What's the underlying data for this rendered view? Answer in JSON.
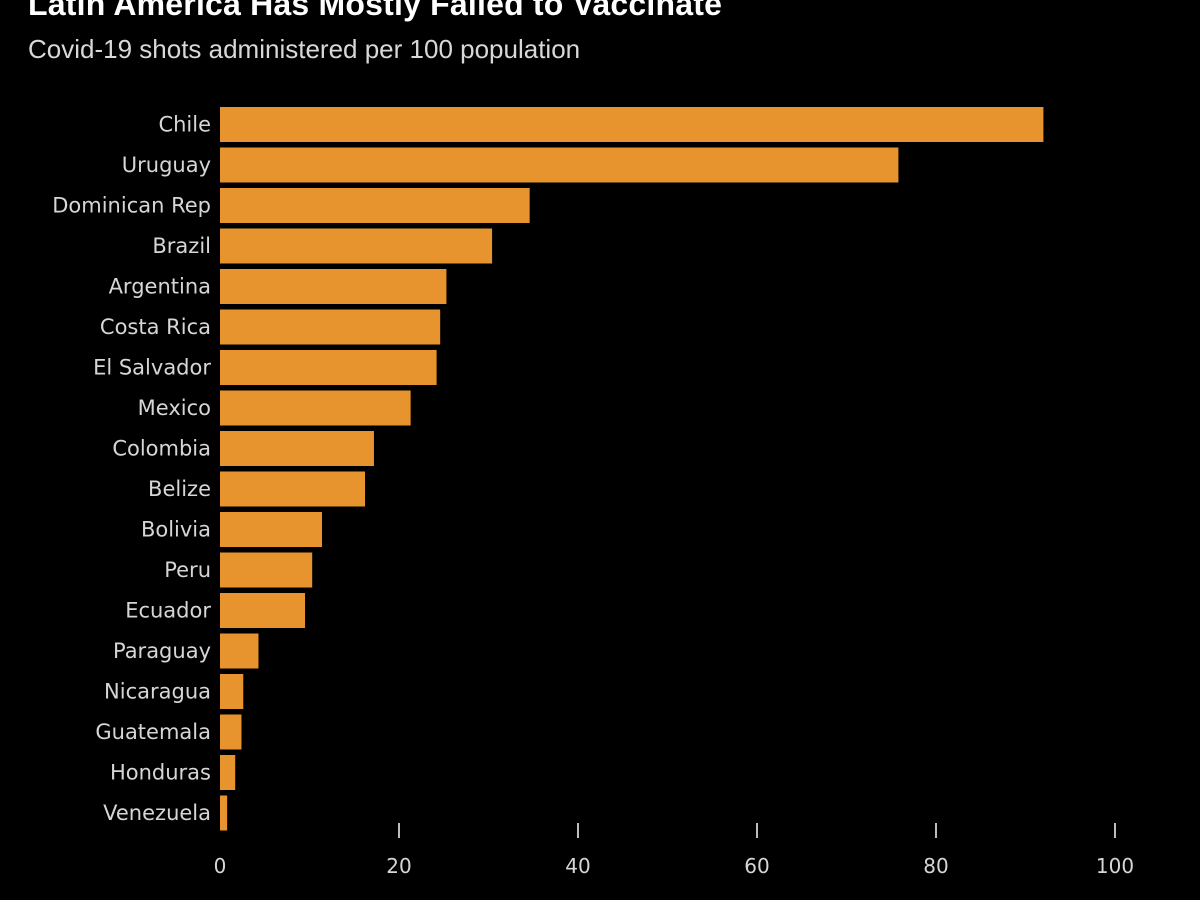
{
  "title": "Latin America Has Mostly Failed to Vaccinate",
  "subtitle": "Covid-19 shots administered per 100 population",
  "colors": {
    "background": "#000000",
    "bar": "#e8942e",
    "text": "#d6d6d6",
    "tick": "#bdbdbd"
  },
  "chart_data": {
    "type": "bar",
    "orientation": "horizontal",
    "title": "Latin America Has Mostly Failed to Vaccinate",
    "subtitle": "Covid-19 shots administered per 100 population",
    "xlabel": "",
    "ylabel": "",
    "xlim": [
      0,
      100
    ],
    "xticks": [
      0,
      20,
      40,
      60,
      80,
      100
    ],
    "grid": false,
    "categories": [
      "Chile",
      "Uruguay",
      "Dominican Rep",
      "Brazil",
      "Argentina",
      "Costa Rica",
      "El Salvador",
      "Mexico",
      "Colombia",
      "Belize",
      "Bolivia",
      "Peru",
      "Ecuador",
      "Paraguay",
      "Nicaragua",
      "Guatemala",
      "Honduras",
      "Venezuela"
    ],
    "values": [
      92,
      75.8,
      34.6,
      30.4,
      25.3,
      24.6,
      24.2,
      21.3,
      17.2,
      16.2,
      11.4,
      10.3,
      9.5,
      4.3,
      2.6,
      2.4,
      1.7,
      0.8
    ]
  }
}
